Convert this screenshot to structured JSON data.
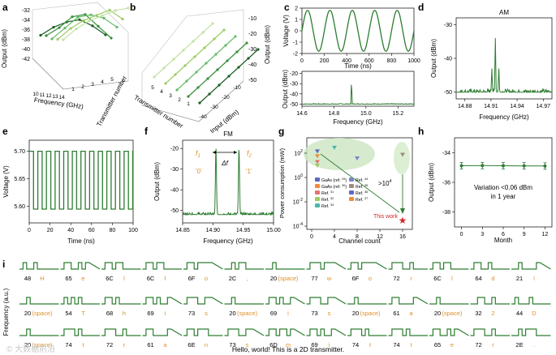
{
  "colors": {
    "green": "#2e7d32",
    "dark": "#1b5e20",
    "orange": "#e0902a",
    "light": "#7cb342",
    "bubble": "#cfe8c4",
    "star": "#d62728"
  },
  "chart_data": [
    {
      "panel": "a",
      "type": "3d-line",
      "xlabel": "Frequency (GHz)",
      "ylabel": "Output (dBm)",
      "zlabel": "Transmitter number",
      "yticks": [
        "-32",
        "-34",
        "-36",
        "-38",
        "-40",
        "-42"
      ],
      "xticks": [
        "10",
        "11",
        "12",
        "13",
        "14"
      ],
      "zticks": [
        "1",
        "2",
        "3",
        "4",
        "5"
      ],
      "note": "5 transmitter spectra, output between -42 and -32 dBm"
    },
    {
      "panel": "b",
      "type": "3d-line",
      "xlabel": "Input (dBm)",
      "ylabel": "Output (dBm)",
      "zlabel": "Transmitter number",
      "yticks": [
        "-10",
        "-20",
        "-30",
        "-40",
        "-50"
      ],
      "xticks": [
        "-40",
        "-30",
        "-20",
        "-10"
      ],
      "zticks": [
        "1",
        "2",
        "3",
        "4",
        "5"
      ],
      "note": "linear input/output response for 5 transmitters"
    },
    {
      "panel": "c-top",
      "type": "line",
      "xlabel": "Time (ns)",
      "ylabel": "Voltage (V)",
      "xlim": [
        0,
        1000
      ],
      "ylim": [
        -2,
        2
      ],
      "xticks": [
        "0",
        "200",
        "400",
        "600",
        "800",
        "1000"
      ],
      "yticks": [
        "2",
        "1",
        "0",
        "-1",
        "-2"
      ],
      "series": [
        {
          "name": "sine",
          "amplitude": 2,
          "period_ns": 200
        }
      ]
    },
    {
      "panel": "c-bottom",
      "type": "line",
      "xlabel": "Frequency (GHz)",
      "ylabel": "Output (dBm)",
      "xlim": [
        14.6,
        15.3
      ],
      "ylim": [
        -52,
        -18
      ],
      "xticks": [
        "14.6",
        "14.8",
        "15.0",
        "15.2"
      ],
      "yticks": [
        "-20",
        "-30",
        "-40",
        "-50"
      ],
      "peaks": [
        {
          "x": 14.91,
          "y": -20
        }
      ],
      "floor": -50
    },
    {
      "panel": "d",
      "type": "line",
      "title": "AM",
      "xlabel": "Frequency (GHz)",
      "ylabel": "Output (dBm)",
      "xlim": [
        14.87,
        14.98
      ],
      "ylim": [
        -52,
        -28
      ],
      "xticks": [
        "14.88",
        "14.91",
        "14.94",
        "14.97"
      ],
      "yticks": [
        "-30",
        "-40",
        "-50"
      ],
      "peaks": [
        {
          "x": 14.915,
          "y": -34
        },
        {
          "x": 14.911,
          "y": -43
        },
        {
          "x": 14.919,
          "y": -43
        }
      ],
      "floor": -50
    },
    {
      "panel": "e",
      "type": "line",
      "xlabel": "Time (ns)",
      "ylabel": "Voltage (V)",
      "xlim": [
        0,
        100
      ],
      "ylim": [
        5.57,
        5.72
      ],
      "xticks": [
        "0",
        "20",
        "40",
        "60",
        "80",
        "100"
      ],
      "yticks": [
        "5.70",
        "5.65",
        "5.60"
      ],
      "series": [
        {
          "name": "square",
          "high": 5.7,
          "low": 5.595,
          "period_ns": 8.3
        }
      ]
    },
    {
      "panel": "f",
      "type": "line",
      "title": "FM",
      "xlabel": "Frequency (GHz)",
      "ylabel": "Output (dBm)",
      "xlim": [
        14.85,
        15.0
      ],
      "ylim": [
        -56,
        -16
      ],
      "xticks": [
        "14.85",
        "14.90",
        "14.95",
        "15.00"
      ],
      "yticks": [
        "-20",
        "-30",
        "-40",
        "-50"
      ],
      "peaks": [
        {
          "x": 14.905,
          "y": -19,
          "name": "f1",
          "bit": "'0'"
        },
        {
          "x": 14.943,
          "y": -19,
          "name": "f2",
          "bit": "'1'"
        }
      ],
      "annotations": [
        "f",
        "1",
        "f",
        "2",
        "Δf",
        "'0'",
        "'1'"
      ],
      "floor": -52
    },
    {
      "panel": "g",
      "type": "scatter",
      "xlabel": "Channel count",
      "ylabel": "Power consumption (mW)",
      "xlim": [
        0,
        16
      ],
      "ylim": [
        -4,
        3
      ],
      "yscale": "log10",
      "xticks": [
        "0",
        "4",
        "8",
        "12",
        "16"
      ],
      "yticks": [
        {
          "m": "10",
          "e": "2"
        },
        {
          "m": "10",
          "e": "0"
        },
        {
          "m": "10",
          "e": "-2"
        },
        {
          "m": "10",
          "e": "-4"
        }
      ],
      "points": [
        {
          "x": 1,
          "y": 150,
          "ref": "GaAs (ref. 29)"
        },
        {
          "x": 1,
          "y": 60,
          "ref": "GaAs (ref. 30)"
        },
        {
          "x": 1,
          "y": 20,
          "ref": "Ref. 31"
        },
        {
          "x": 1,
          "y": 10,
          "ref": "Ref. 32"
        },
        {
          "x": 4,
          "y": 300,
          "ref": "Ref. 33"
        },
        {
          "x": 8,
          "y": 40,
          "ref": "Ref. 34"
        },
        {
          "x": 16,
          "y": 80,
          "ref": "Ref. 35"
        },
        {
          "x": 16,
          "y": 0.0003,
          "ref": "This work"
        }
      ],
      "legend": [
        {
          "label": "GaAs (ref. ",
          "ref": "29",
          "tail": ")"
        },
        {
          "label": "GaAs (ref. ",
          "ref": "30",
          "tail": ")"
        },
        {
          "label": "Ref. ",
          "ref": "31",
          "tail": ""
        },
        {
          "label": "Ref. ",
          "ref": "32",
          "tail": ""
        },
        {
          "label": "Ref. ",
          "ref": "33",
          "tail": ""
        },
        {
          "label": "Ref. ",
          "ref": "34",
          "tail": ""
        },
        {
          "label": "Ref. ",
          "ref": "35",
          "tail": ""
        },
        {
          "label": "Ref. ",
          "ref": "36",
          "tail": ""
        },
        {
          "label": "Ref. ",
          "ref": "37",
          "tail": ""
        }
      ],
      "annotation": {
        "text": ">10",
        "sup": "4"
      },
      "this_work": "This work"
    },
    {
      "panel": "h",
      "type": "line",
      "xlabel": "Month",
      "ylabel": "Output (dBm)",
      "xlim": [
        -1,
        13
      ],
      "ylim": [
        -39,
        -33
      ],
      "xticks": [
        "0",
        "3",
        "6",
        "9",
        "12"
      ],
      "yticks": [
        "-34",
        "-36",
        "-38"
      ],
      "x": [
        0,
        3,
        6,
        9,
        12
      ],
      "y": [
        -34.88,
        -34.87,
        -34.88,
        -34.89,
        -34.9
      ],
      "annotation": [
        "Variation <0.06 dBm",
        "in 1 year"
      ]
    },
    {
      "panel": "i",
      "type": "bit-sequence",
      "ylabel": "Frequency (a.u.)",
      "caption": "Hello, world! This is a 2D transmitter.",
      "rows": [
        [
          [
            "48",
            "H"
          ],
          [
            "65",
            "e"
          ],
          [
            "6C",
            "l"
          ],
          [
            "6C",
            "l"
          ],
          [
            "6F",
            "o"
          ],
          [
            "2C",
            ","
          ],
          [
            "20",
            "(space)"
          ],
          [
            "77",
            "w"
          ],
          [
            "6F",
            "o"
          ],
          [
            "72",
            "r"
          ],
          [
            "6C",
            "l"
          ],
          [
            "64",
            "d"
          ],
          [
            "21",
            "!"
          ]
        ],
        [
          [
            "20",
            "(space)"
          ],
          [
            "54",
            "T"
          ],
          [
            "68",
            "h"
          ],
          [
            "69",
            "i"
          ],
          [
            "73",
            "s"
          ],
          [
            "20",
            "(space)"
          ],
          [
            "69",
            "i"
          ],
          [
            "73",
            "s"
          ],
          [
            "20",
            "(space)"
          ],
          [
            "61",
            "a"
          ],
          [
            "20",
            "(space)"
          ],
          [
            "32",
            "2"
          ],
          [
            "44",
            "D"
          ]
        ],
        [
          [
            "20",
            "(space)"
          ],
          [
            "74",
            "t"
          ],
          [
            "72",
            "r"
          ],
          [
            "61",
            "a"
          ],
          [
            "6E",
            "n"
          ],
          [
            "73",
            "s"
          ],
          [
            "6D",
            "m"
          ],
          [
            "69",
            "i"
          ],
          [
            "74",
            "t"
          ],
          [
            "74",
            "t"
          ],
          [
            "65",
            "e"
          ],
          [
            "72",
            "r"
          ],
          [
            "2E",
            "."
          ]
        ]
      ]
    }
  ],
  "panel_letters": [
    "a",
    "b",
    "c",
    "d",
    "e",
    "f",
    "g",
    "h",
    "i"
  ],
  "watermark": "© 大数据前沿"
}
